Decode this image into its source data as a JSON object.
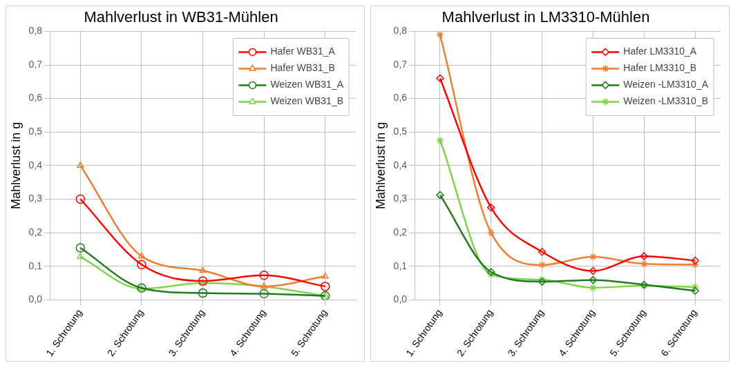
{
  "chart_data": [
    {
      "type": "line",
      "title": "Mahlverlust in WB31-Mühlen",
      "ylabel": "Mahlverlust in g",
      "categories": [
        "1. Schrotung",
        "2. Schrotung",
        "3. Schrotung",
        "4. Schrotung",
        "5. Schrotung"
      ],
      "series": [
        {
          "name": "Hafer WB31_A",
          "color": "#ff0000",
          "marker": "circle",
          "values": [
            0.3,
            0.105,
            0.056,
            0.073,
            0.04
          ]
        },
        {
          "name": "Hafer WB31_B",
          "color": "#ed7d31",
          "marker": "triangle",
          "values": [
            0.4,
            0.13,
            0.087,
            0.04,
            0.07
          ]
        },
        {
          "name": "Weizen WB31_A",
          "color": "#1e7b1e",
          "marker": "circle",
          "values": [
            0.155,
            0.035,
            0.02,
            0.018,
            0.012
          ]
        },
        {
          "name": "Weizen WB31_B",
          "color": "#7ed348",
          "marker": "triangle",
          "values": [
            0.128,
            0.033,
            0.05,
            0.04,
            0.012
          ]
        }
      ],
      "ylim": [
        0,
        0.8
      ],
      "yticks": [
        {
          "value": 0,
          "label": "0,0"
        },
        {
          "value": 0.1,
          "label": "0,1"
        },
        {
          "value": 0.2,
          "label": "0,2"
        },
        {
          "value": 0.3,
          "label": "0,3"
        },
        {
          "value": 0.4,
          "label": "0,4"
        },
        {
          "value": 0.5,
          "label": "0,5"
        },
        {
          "value": 0.6,
          "label": "0,6"
        },
        {
          "value": 0.7,
          "label": "0,7"
        },
        {
          "value": 0.8,
          "label": "0,8"
        }
      ],
      "grid": true,
      "legend": "top right"
    },
    {
      "type": "line",
      "title": "Mahlverlust in LM3310-Mühlen",
      "ylabel": "Mahlverlust in g",
      "categories": [
        "1. Schrotung",
        "2. Schrotung",
        "3. Schrotung",
        "4. Schrotung",
        "5. Schrotung",
        "6. Schrotung"
      ],
      "series": [
        {
          "name": "Hafer LM3310_A",
          "color": "#ff0000",
          "marker": "diamond",
          "values": [
            0.66,
            0.275,
            0.143,
            0.086,
            0.13,
            0.117
          ]
        },
        {
          "name": "Hafer LM3310_B",
          "color": "#ed7d31",
          "marker": "cross",
          "values": [
            0.79,
            0.2,
            0.104,
            0.128,
            0.107,
            0.105
          ]
        },
        {
          "name": "Weizen -LM3310_A",
          "color": "#1e7b1e",
          "marker": "diamond",
          "values": [
            0.312,
            0.083,
            0.054,
            0.059,
            0.045,
            0.027
          ]
        },
        {
          "name": "Weizen -LM3310_B",
          "color": "#7ed348",
          "marker": "cross",
          "values": [
            0.475,
            0.075,
            0.06,
            0.036,
            0.042,
            0.038
          ]
        }
      ],
      "ylim": [
        0,
        0.8
      ],
      "yticks": [
        {
          "value": 0,
          "label": "0,0"
        },
        {
          "value": 0.1,
          "label": "0,1"
        },
        {
          "value": 0.2,
          "label": "0,2"
        },
        {
          "value": 0.3,
          "label": "0,3"
        },
        {
          "value": 0.4,
          "label": "0,4"
        },
        {
          "value": 0.5,
          "label": "0,5"
        },
        {
          "value": 0.6,
          "label": "0,6"
        },
        {
          "value": 0.7,
          "label": "0,7"
        },
        {
          "value": 0.8,
          "label": "0,8"
        }
      ],
      "grid": true,
      "legend": "top right"
    }
  ]
}
